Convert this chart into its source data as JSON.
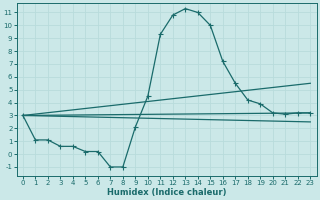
{
  "xlabel": "Humidex (Indice chaleur)",
  "bg_color": "#cbe8e8",
  "grid_color": "#d4ecec",
  "line_color": "#1a6b6b",
  "xlim": [
    -0.5,
    23.5
  ],
  "ylim": [
    -1.7,
    11.7
  ],
  "xticks": [
    0,
    1,
    2,
    3,
    4,
    5,
    6,
    7,
    8,
    9,
    10,
    11,
    12,
    13,
    14,
    15,
    16,
    17,
    18,
    19,
    20,
    21,
    22,
    23
  ],
  "yticks": [
    -1,
    0,
    1,
    2,
    3,
    4,
    5,
    6,
    7,
    8,
    9,
    10,
    11
  ],
  "main_x": [
    0,
    1,
    2,
    3,
    4,
    5,
    6,
    7,
    8,
    9,
    10,
    11,
    12,
    13,
    14,
    15,
    16,
    17,
    18,
    19,
    20,
    21,
    22,
    23
  ],
  "main_y": [
    3.0,
    1.1,
    1.1,
    0.6,
    0.6,
    0.2,
    0.2,
    -1.0,
    -1.0,
    2.1,
    4.5,
    9.3,
    10.8,
    11.3,
    11.0,
    10.0,
    7.2,
    5.5,
    4.2,
    3.9,
    3.2,
    3.1,
    3.2,
    3.2
  ],
  "trend1_x": [
    0,
    23
  ],
  "trend1_y": [
    3.0,
    5.5
  ],
  "trend2_x": [
    0,
    23
  ],
  "trend2_y": [
    3.0,
    3.2
  ],
  "trend3_x": [
    0,
    23
  ],
  "trend3_y": [
    3.0,
    2.5
  ],
  "lw": 0.9,
  "markersize": 2.0,
  "tick_fontsize": 5.0,
  "xlabel_fontsize": 6.0
}
